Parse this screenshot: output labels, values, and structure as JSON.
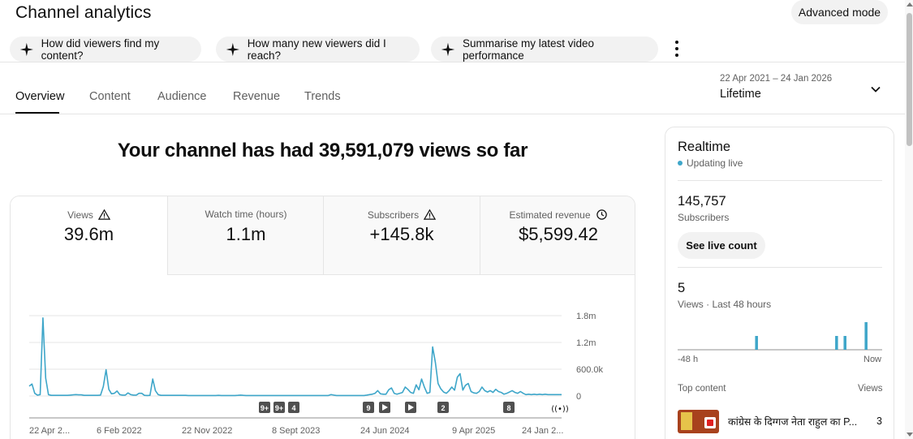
{
  "header": {
    "title": "Channel analytics",
    "advanced_mode": "Advanced mode"
  },
  "suggestions": [
    {
      "label": "How did viewers find my content?",
      "icon": "sparkle-icon"
    },
    {
      "label": "How many new viewers did I reach?",
      "icon": "sparkle-icon"
    },
    {
      "label": "Summarise my latest video performance",
      "icon": "sparkle-icon"
    }
  ],
  "tabs": [
    "Overview",
    "Content",
    "Audience",
    "Revenue",
    "Trends"
  ],
  "active_tab": "Overview",
  "date_picker": {
    "range": "22 Apr 2021 – 24 Jan 2026",
    "label": "Lifetime"
  },
  "headline": "Your channel has had 39,591,079 views so far",
  "metrics": [
    {
      "label": "Views",
      "value": "39.6m",
      "icon": "warning-icon"
    },
    {
      "label": "Watch time (hours)",
      "value": "1.1m",
      "icon": ""
    },
    {
      "label": "Subscribers",
      "value": "+145.8k",
      "icon": "warning-icon"
    },
    {
      "label": "Estimated revenue",
      "value": "$5,599.42",
      "icon": "clock-icon"
    }
  ],
  "chart_data": {
    "type": "line",
    "series": [
      {
        "values": [
          220000,
          270000,
          60000,
          20000,
          30000,
          1750000,
          400000,
          30000,
          15000,
          15000,
          15000,
          15000,
          15000,
          15000,
          15000,
          20000,
          25000,
          30000,
          25000,
          25000,
          15000,
          15000,
          15000,
          15000,
          15000,
          15000,
          20000,
          210000,
          590000,
          150000,
          50000,
          60000,
          110000,
          30000,
          20000,
          20000,
          70000,
          30000,
          20000,
          20000,
          60000,
          60000,
          15000,
          10000,
          15000,
          380000,
          120000,
          30000,
          15000,
          15000,
          15000,
          15000,
          15000,
          15000,
          15000,
          15000,
          15000,
          15000,
          10000,
          10000,
          10000,
          10000,
          10000,
          10000,
          10000,
          10000,
          10000,
          10000,
          10000,
          15000,
          10000,
          10000,
          10000,
          10000,
          10000,
          10000,
          15000,
          20000,
          15000,
          10000,
          10000,
          10000,
          10000,
          10000,
          10000,
          10000,
          10000,
          10000,
          10000,
          10000,
          10000,
          10000,
          10000,
          10000,
          10000,
          10000,
          10000,
          10000,
          10000,
          10000,
          10000,
          10000,
          10000,
          10000,
          10000,
          10000,
          10000,
          10000,
          10000,
          10000,
          30000,
          20000,
          10000,
          10000,
          10000,
          10000,
          10000,
          10000,
          10000,
          10000,
          10000,
          10000,
          10000,
          20000,
          30000,
          40000,
          60000,
          120000,
          50000,
          40000,
          40000,
          140000,
          180000,
          60000,
          40000,
          60000,
          80000,
          200000,
          150000,
          80000,
          60000,
          250000,
          140000,
          380000,
          200000,
          60000,
          80000,
          1100000,
          750000,
          280000,
          160000,
          90000,
          60000,
          120000,
          200000,
          130000,
          420000,
          500000,
          130000,
          240000,
          280000,
          100000,
          70000,
          60000,
          100000,
          200000,
          120000,
          90000,
          120000,
          80000,
          150000,
          100000,
          80000,
          40000,
          60000,
          90000,
          120000,
          80000,
          60000,
          100000,
          60000,
          30000,
          40000,
          30000,
          40000,
          30000,
          40000,
          30000,
          40000,
          30000,
          30000,
          30000,
          30000,
          30000,
          30000
        ]
      }
    ],
    "y_ticks": [
      "1.8m",
      "1.2m",
      "600.0k",
      "0"
    ],
    "ylim": [
      0,
      1800000
    ],
    "x_ticks": [
      "22 Apr 2...",
      "6 Feb 2022",
      "22 Nov 2022",
      "8 Sept 2023",
      "24 Jun 2024",
      "9 Apr 2025",
      "24 Jan 2..."
    ],
    "markers": [
      "9+",
      "9+",
      "4",
      "9",
      "play",
      "play",
      "2",
      "8",
      "live"
    ],
    "grid": true,
    "color": "#3ea6c9"
  },
  "realtime": {
    "title": "Realtime",
    "status": "Updating live",
    "subscribers_value": "145,757",
    "subscribers_label": "Subscribers",
    "live_count_button": "See live count",
    "views_value": "5",
    "views_label": "Views · Last 48 hours",
    "mini_chart": {
      "type": "bar",
      "values": [
        0,
        0,
        0,
        0,
        0,
        0,
        0,
        0,
        0,
        0,
        0,
        0,
        0,
        0,
        0,
        0,
        0,
        0,
        1,
        0,
        0,
        0,
        0,
        0,
        0,
        0,
        0,
        0,
        0,
        0,
        0,
        0,
        0,
        0,
        0,
        0,
        0,
        1,
        0,
        1,
        0,
        0,
        0,
        0,
        2,
        0,
        0,
        0
      ]
    },
    "axis_left": "-48 h",
    "axis_right": "Now",
    "top_content_label": "Top content",
    "top_content_views_label": "Views",
    "top_video": {
      "title": "कांग्रेस के दिग्गज नेता राहुल का P...",
      "views": "3"
    }
  },
  "colors": {
    "accent": "#3ea6c9",
    "chip_bg": "#f2f2f2",
    "text_secondary": "#606060"
  }
}
